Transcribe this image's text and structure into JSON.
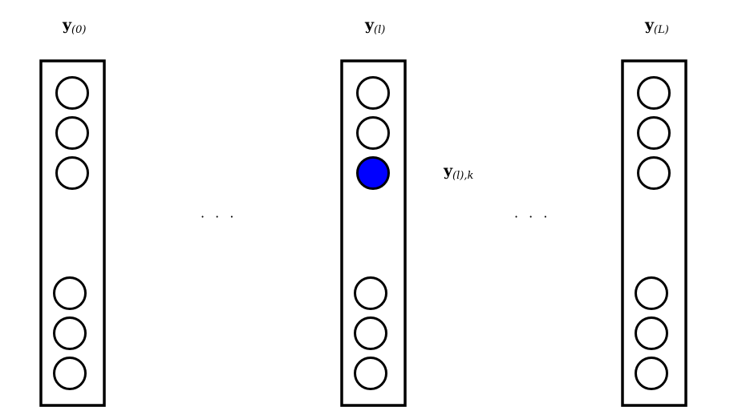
{
  "layers": [
    {
      "symbol": "y",
      "subscript": "(0)"
    },
    {
      "symbol": "y",
      "subscript": "(l)"
    },
    {
      "symbol": "y",
      "subscript": "(L)"
    }
  ],
  "highlighted_neuron": {
    "layer_index": 1,
    "neuron_index": 2,
    "symbol": "y",
    "subscript": "(l),k",
    "color": "#0000ff"
  },
  "ellipses": [
    "· · ·",
    "· · ·"
  ],
  "colors": {
    "stroke": "#000000",
    "fill": "#ffffff",
    "highlight": "#0000ff"
  }
}
